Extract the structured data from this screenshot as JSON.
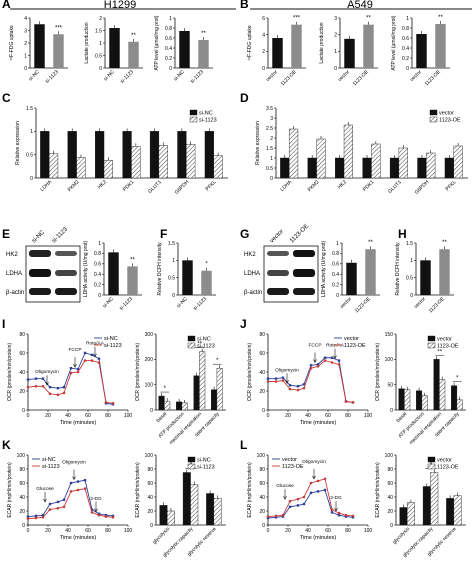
{
  "figure": {
    "panels": [
      {
        "letter": "A",
        "title": "H1299"
      },
      {
        "letter": "B",
        "title": "A549"
      },
      {
        "letter": "C",
        "title": ""
      },
      {
        "letter": "D",
        "title": ""
      },
      {
        "letter": "E",
        "title": ""
      },
      {
        "letter": "F",
        "title": ""
      },
      {
        "letter": "G",
        "title": ""
      },
      {
        "letter": "H",
        "title": ""
      },
      {
        "letter": "I",
        "title": ""
      },
      {
        "letter": "J",
        "title": ""
      },
      {
        "letter": "K",
        "title": ""
      },
      {
        "letter": "L",
        "title": ""
      }
    ],
    "colors": {
      "black": "#111111",
      "grey": "#8c8c8c",
      "hatch": "#d8d8d8",
      "blue": "#2c3f9a",
      "red": "#c83a3a"
    }
  },
  "chart_data": [
    {
      "id": "A1",
      "type": "bar",
      "categories": [
        "si-NC",
        "si-1123"
      ],
      "values": [
        3.5,
        2.7
      ],
      "ylabel": "¹⁸F-FDG uptake",
      "ylim": [
        0,
        4
      ],
      "yticks": [
        0,
        1,
        2,
        3,
        4
      ],
      "annotations": [
        "***"
      ]
    },
    {
      "id": "A2",
      "type": "bar",
      "categories": [
        "si-NC",
        "si-1123"
      ],
      "values": [
        1.6,
        1.05
      ],
      "ylabel": "Lactate production",
      "ylim": [
        0,
        2
      ],
      "yticks": [
        0.0,
        0.5,
        1.0,
        1.5,
        2.0
      ],
      "annotations": [
        "**"
      ]
    },
    {
      "id": "A3",
      "type": "bar",
      "categories": [
        "si-NC",
        "si-1123"
      ],
      "values": [
        0.74,
        0.56
      ],
      "ylabel": "ATP level (µmol/mg prot)",
      "ylim": [
        0,
        1
      ],
      "yticks": [
        0.0,
        0.2,
        0.4,
        0.6,
        0.8,
        1.0
      ],
      "annotations": [
        "**"
      ]
    },
    {
      "id": "B1",
      "type": "bar",
      "categories": [
        "vector",
        "1123-OE"
      ],
      "values": [
        3.6,
        5.2
      ],
      "ylabel": "¹⁸F-FDG uptake",
      "ylim": [
        0,
        6
      ],
      "yticks": [
        0,
        2,
        4,
        6
      ],
      "annotations": [
        "***"
      ]
    },
    {
      "id": "B2",
      "type": "bar",
      "categories": [
        "vector",
        "1123-OE"
      ],
      "values": [
        1.75,
        2.6
      ],
      "ylabel": "Lactate production",
      "ylim": [
        0,
        3
      ],
      "yticks": [
        0,
        1,
        2,
        3
      ],
      "annotations": [
        "**"
      ]
    },
    {
      "id": "B3",
      "type": "bar",
      "categories": [
        "vector",
        "1123-OE"
      ],
      "values": [
        0.68,
        0.88
      ],
      "ylabel": "ATP level (µmol/mg prot)",
      "ylim": [
        0,
        1
      ],
      "yticks": [
        0.0,
        0.2,
        0.4,
        0.6,
        0.8,
        1.0
      ],
      "annotations": [
        "**"
      ]
    },
    {
      "id": "C",
      "type": "bar",
      "categories": [
        "LDHA",
        "PKM2",
        "HK2",
        "PDK1",
        "GLUT1",
        "G6PDH",
        "PFKL"
      ],
      "series": [
        {
          "name": "si-NC",
          "values": [
            1.0,
            1.0,
            1.0,
            1.0,
            1.0,
            1.0,
            1.0
          ]
        },
        {
          "name": "si-1123",
          "values": [
            0.52,
            0.44,
            0.38,
            0.68,
            0.7,
            0.72,
            0.48
          ]
        }
      ],
      "ylabel": "Relative expression",
      "ylim": [
        0,
        1.5
      ],
      "yticks": [
        0.0,
        0.5,
        1.0,
        1.5
      ],
      "legend": "top-right"
    },
    {
      "id": "D",
      "type": "bar",
      "categories": [
        "LDHA",
        "PKM2",
        "HK2",
        "PDK1",
        "GLUT1",
        "G6PDH",
        "PFKL"
      ],
      "series": [
        {
          "name": "vector",
          "values": [
            1.0,
            1.0,
            1.0,
            1.0,
            1.0,
            1.0,
            1.0
          ]
        },
        {
          "name": "1123-OE",
          "values": [
            2.45,
            1.95,
            2.65,
            1.7,
            1.5,
            1.25,
            1.6
          ]
        }
      ],
      "ylabel": "Relative expression",
      "ylim": [
        0,
        3.5
      ],
      "yticks": [
        0.0,
        0.5,
        1.0,
        1.5,
        2.0,
        2.5,
        3.0,
        3.5
      ],
      "legend": "top-right"
    },
    {
      "id": "E",
      "type": "bar",
      "categories": [
        "si-NC",
        "si-1123"
      ],
      "values": [
        0.82,
        0.55
      ],
      "ylabel": "LDHA activity (U/mg prot)",
      "ylim": [
        0,
        1
      ],
      "yticks": [
        0.0,
        0.2,
        0.4,
        0.6,
        0.8,
        1.0
      ],
      "annotations": [
        "**"
      ]
    },
    {
      "id": "F",
      "type": "bar",
      "categories": [
        "si-NC",
        "si-1123"
      ],
      "values": [
        1.0,
        0.7
      ],
      "ylabel": "Relative DCFH intensity",
      "ylim": [
        0,
        1.5
      ],
      "yticks": [
        0.0,
        0.5,
        1.0,
        1.5
      ],
      "annotations": [
        "*"
      ]
    },
    {
      "id": "G",
      "type": "bar",
      "categories": [
        "vector",
        "1123-OE"
      ],
      "values": [
        0.62,
        0.88
      ],
      "ylabel": "LDHA activity (U/mg prot)",
      "ylim": [
        0,
        1
      ],
      "yticks": [
        0.0,
        0.2,
        0.4,
        0.6,
        0.8,
        1.0
      ],
      "annotations": [
        "**"
      ]
    },
    {
      "id": "H",
      "type": "bar",
      "categories": [
        "vector",
        "1123-OE"
      ],
      "values": [
        1.0,
        1.32
      ],
      "ylabel": "Relative DCFH intensity",
      "ylim": [
        0,
        1.5
      ],
      "yticks": [
        0.0,
        0.5,
        1.0,
        1.5
      ],
      "annotations": [
        "**"
      ]
    },
    {
      "id": "I1",
      "type": "line",
      "x": [
        0,
        8,
        15,
        22,
        30,
        36,
        43,
        50,
        57,
        64,
        71,
        78,
        85
      ],
      "series": [
        {
          "name": "si-NC",
          "values": [
            32,
            33,
            33,
            24,
            23,
            24,
            44,
            43,
            60,
            58,
            54,
            7,
            6
          ]
        },
        {
          "name": "si-1123",
          "values": [
            24,
            25,
            25,
            17,
            16,
            18,
            39,
            40,
            52,
            52,
            50,
            8,
            7
          ]
        }
      ],
      "xlabel": "Time (minutes)",
      "ylabel": "OCR (pmoles/min/protein)",
      "xlim": [
        0,
        100
      ],
      "ylim": [
        0,
        80
      ],
      "xticks": [
        0,
        20,
        40,
        60,
        80,
        100
      ],
      "yticks": [
        0,
        20,
        40,
        60,
        80
      ],
      "annotations": [
        "Oligomycin",
        "FCCP",
        "Rote/AA"
      ],
      "legend": "top-right"
    },
    {
      "id": "I2",
      "type": "bar",
      "categories": [
        "basal",
        "ATP production",
        "maximal respiration",
        "spare capacity"
      ],
      "series": [
        {
          "name": "si-NC",
          "values": [
            55,
            32,
            135,
            80
          ]
        },
        {
          "name": "si-1123",
          "values": [
            35,
            28,
            230,
            165
          ]
        }
      ],
      "ylabel": "OCR (pmoles/min/protein)",
      "ylim": [
        0,
        300
      ],
      "yticks": [
        0,
        100,
        200,
        300
      ],
      "annotations": [
        "*",
        "**",
        "*"
      ],
      "legend": "top-right"
    },
    {
      "id": "J1",
      "type": "line",
      "x": [
        0,
        8,
        15,
        22,
        30,
        36,
        43,
        50,
        57,
        64,
        71,
        78,
        85
      ],
      "series": [
        {
          "name": "vector",
          "values": [
            33,
            33,
            34,
            26,
            25,
            27,
            47,
            48,
            55,
            55,
            52,
            9,
            8
          ]
        },
        {
          "name": "1123-OE",
          "values": [
            30,
            30,
            31,
            22,
            21,
            23,
            44,
            46,
            52,
            50,
            48,
            9,
            8
          ]
        }
      ],
      "xlabel": "Time (minutes)",
      "ylabel": "OCR (pmoles/min/protein)",
      "xlim": [
        0,
        100
      ],
      "ylim": [
        0,
        80
      ],
      "xticks": [
        0,
        20,
        40,
        60,
        80,
        100
      ],
      "yticks": [
        0,
        20,
        40,
        60,
        80
      ],
      "annotations": [
        "Oligomycin",
        "FCCP",
        "Rote/AA"
      ],
      "legend": "top-right"
    },
    {
      "id": "J2",
      "type": "bar",
      "categories": [
        "basal",
        "ATP production",
        "maximal respiration",
        "spare capacity"
      ],
      "series": [
        {
          "name": "vector",
          "values": [
            42,
            38,
            100,
            48
          ]
        },
        {
          "name": "1123-OE",
          "values": [
            40,
            28,
            60,
            20
          ]
        }
      ],
      "ylabel": "OCR (pmoles/min/protein)",
      "ylim": [
        0,
        150
      ],
      "yticks": [
        0,
        50,
        100,
        150
      ],
      "annotations": [
        "**",
        "*"
      ],
      "legend": "top-right"
    },
    {
      "id": "K1",
      "type": "line",
      "x": [
        0,
        8,
        15,
        22,
        30,
        36,
        43,
        50,
        57,
        64,
        71,
        78,
        85
      ],
      "series": [
        {
          "name": "si-NC",
          "values": [
            12,
            13,
            14,
            30,
            33,
            36,
            60,
            62,
            64,
            22,
            16,
            14,
            13
          ]
        },
        {
          "name": "si-1123",
          "values": [
            9,
            10,
            11,
            22,
            24,
            26,
            48,
            50,
            52,
            18,
            14,
            12,
            11
          ]
        }
      ],
      "xlabel": "Time (minutes)",
      "ylabel": "ECAR (mpH/min/protein)",
      "xlim": [
        0,
        100
      ],
      "ylim": [
        0,
        100
      ],
      "xticks": [
        0,
        20,
        40,
        60,
        80,
        100
      ],
      "yticks": [
        0,
        20,
        40,
        60,
        80,
        100
      ],
      "annotations": [
        "Glucose",
        "Oligomycin",
        "2-DG"
      ],
      "legend": "top-left"
    },
    {
      "id": "K2",
      "type": "bar",
      "categories": [
        "glycolysis",
        "glycolytic capacity",
        "glycolytic reserve"
      ],
      "series": [
        {
          "name": "si-NC",
          "values": [
            28,
            75,
            45
          ]
        },
        {
          "name": "si-1123",
          "values": [
            20,
            58,
            38
          ]
        }
      ],
      "ylabel": "ECAR (mpH/min/protein)",
      "ylim": [
        0,
        100
      ],
      "yticks": [
        0,
        20,
        40,
        60,
        80,
        100
      ],
      "annotations": [
        "*"
      ],
      "legend": "top-right"
    },
    {
      "id": "L1",
      "type": "line",
      "x": [
        0,
        8,
        15,
        22,
        30,
        36,
        43,
        50,
        57,
        64,
        71,
        78,
        85
      ],
      "series": [
        {
          "name": "vector",
          "values": [
            10,
            11,
            12,
            26,
            28,
            30,
            46,
            48,
            50,
            18,
            14,
            12,
            11
          ]
        },
        {
          "name": "1123-OE",
          "values": [
            12,
            13,
            14,
            34,
            37,
            40,
            60,
            63,
            66,
            22,
            17,
            14,
            13
          ]
        }
      ],
      "xlabel": "Time (minutes)",
      "ylabel": "ECAR (mpH/min/protein)",
      "xlim": [
        0,
        100
      ],
      "ylim": [
        0,
        100
      ],
      "xticks": [
        0,
        20,
        40,
        60,
        80,
        100
      ],
      "yticks": [
        0,
        20,
        40,
        60,
        80,
        100
      ],
      "annotations": [
        "Glucose",
        "Oligomycin",
        "2-DG"
      ],
      "legend": "top-left"
    },
    {
      "id": "L2",
      "type": "bar",
      "categories": [
        "glycolysis",
        "glycolytic capacity",
        "glycolytic reserve"
      ],
      "series": [
        {
          "name": "vector",
          "values": [
            25,
            55,
            38
          ]
        },
        {
          "name": "1123-OE",
          "values": [
            32,
            75,
            42
          ]
        }
      ],
      "ylabel": "ECAR (mpH/min/protein)",
      "ylim": [
        0,
        100
      ],
      "yticks": [
        0,
        20,
        40,
        60,
        80,
        100
      ],
      "annotations": [
        "*"
      ],
      "legend": "top-right"
    }
  ],
  "blots": {
    "E": {
      "lanes": [
        "si-NC",
        "si-1123"
      ],
      "rows": [
        "HK2",
        "LDHA",
        "β-actin"
      ]
    },
    "G": {
      "lanes": [
        "vector",
        "1123-OE"
      ],
      "rows": [
        "HK2",
        "LDHA",
        "β-actin"
      ]
    }
  }
}
